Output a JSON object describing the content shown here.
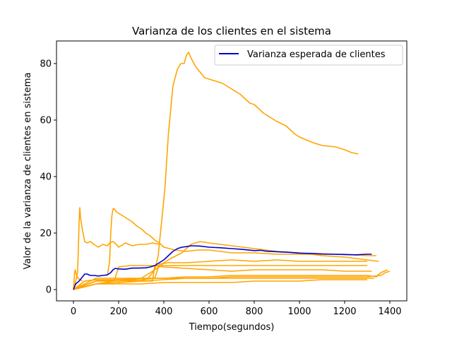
{
  "chart_data": {
    "type": "line",
    "title": "Varianza de los clientes en el sistema",
    "xlabel": "Tiempo(segundos)",
    "ylabel": "Valor de la varianza de clientes en sistema",
    "xlim": [
      -75,
      1475
    ],
    "ylim": [
      -4,
      88
    ],
    "xticks": [
      0,
      200,
      400,
      600,
      800,
      1000,
      1200,
      1400
    ],
    "yticks": [
      0,
      20,
      40,
      60,
      80
    ],
    "grid": false,
    "legend_position": "top-right",
    "legend": [
      "Varianza esperada de clientes"
    ],
    "colors": {
      "expected": "#0000cc",
      "samples": "#ffa500"
    },
    "series": [
      {
        "name": "Varianza esperada de clientes",
        "role": "expected",
        "x": [
          0,
          10,
          25,
          40,
          50,
          60,
          75,
          90,
          110,
          130,
          150,
          165,
          175,
          185,
          200,
          230,
          260,
          290,
          320,
          340,
          360,
          380,
          400,
          420,
          440,
          460,
          480,
          500,
          520,
          560,
          600,
          650,
          700,
          750,
          800,
          830,
          850,
          900,
          950,
          1000,
          1050,
          1100,
          1150,
          1200,
          1250,
          1300,
          1320
        ],
        "y": [
          0,
          2,
          3,
          4.5,
          5.5,
          5.5,
          5,
          5,
          4.8,
          5,
          5.2,
          6,
          7,
          7.5,
          7.3,
          7.2,
          7.6,
          7.6,
          7.7,
          8,
          8.5,
          9.5,
          10.5,
          12,
          13.5,
          14.5,
          15,
          15.2,
          15.5,
          15.4,
          15,
          14.8,
          14.5,
          14.2,
          13.8,
          13.9,
          13.6,
          13.4,
          13.2,
          12.9,
          12.8,
          12.6,
          12.5,
          12.4,
          12.3,
          12.5,
          12.5
        ]
      },
      {
        "x": [
          0,
          50,
          100,
          150,
          200,
          250,
          300,
          330,
          360,
          375,
          385,
          395,
          405,
          420,
          440,
          460,
          475,
          490,
          500,
          510,
          520,
          540,
          560,
          580,
          620,
          660,
          700,
          740,
          780,
          800,
          820,
          840,
          880,
          900,
          940,
          980,
          1000,
          1060,
          1100,
          1160,
          1200,
          1230,
          1260
        ],
        "y": [
          0,
          3,
          3.5,
          3.2,
          3.5,
          3,
          3,
          4,
          7,
          12,
          20,
          28,
          36,
          55,
          72,
          78,
          80,
          80,
          83,
          84,
          82,
          79,
          77,
          75,
          74,
          73,
          71,
          69,
          66,
          65.5,
          64,
          62.5,
          60.5,
          59.5,
          58,
          55,
          54,
          52,
          51,
          50.5,
          49.5,
          48.5,
          48
        ]
      },
      {
        "x": [
          0,
          10,
          18,
          22,
          25,
          28,
          32,
          40,
          50,
          60,
          75,
          90,
          110,
          130,
          150,
          160,
          175,
          190,
          200,
          230,
          260,
          290,
          320,
          350,
          380
        ],
        "y": [
          0,
          3,
          6,
          15,
          24,
          29,
          25,
          21,
          17,
          16.5,
          17,
          16,
          15,
          16,
          15.5,
          16.5,
          17,
          16,
          15,
          16.5,
          15.5,
          16,
          16,
          16.5,
          16
        ]
      },
      {
        "x": [
          150,
          160,
          165,
          170,
          175,
          180,
          190,
          200,
          220,
          240,
          260,
          280,
          300,
          320,
          340,
          360,
          380,
          400,
          450,
          500,
          550,
          600,
          650,
          700,
          800,
          900,
          1000,
          1100,
          1200,
          1300,
          1340
        ],
        "y": [
          5,
          10,
          20,
          26,
          28.5,
          28.7,
          27.5,
          27,
          26,
          25,
          24,
          22.5,
          21.5,
          20,
          19,
          17.5,
          16.5,
          15,
          14,
          13.5,
          14,
          14,
          13.5,
          13,
          13,
          12.5,
          12.5,
          12.5,
          12.5,
          12,
          12
        ]
      },
      {
        "x": [
          0,
          50,
          100,
          150,
          200,
          250,
          300,
          320,
          340,
          360,
          380,
          400,
          430,
          480,
          520,
          560,
          600,
          700,
          800,
          900,
          1000,
          1100,
          1200,
          1300,
          1350
        ],
        "y": [
          0,
          3,
          3.5,
          3.5,
          3.5,
          3.5,
          4,
          5,
          6,
          7,
          8,
          9.5,
          11,
          13,
          16,
          17,
          16.5,
          15.5,
          14.5,
          13.5,
          13,
          12,
          11.5,
          10.5,
          10
        ]
      },
      {
        "x": [
          0,
          100,
          200,
          300,
          360,
          380,
          420,
          500,
          600,
          700,
          800,
          900,
          1000,
          1100,
          1200,
          1300
        ],
        "y": [
          0,
          3,
          3,
          3.5,
          4,
          9,
          9.5,
          9.5,
          10,
          10.5,
          10,
          10.5,
          10,
          10,
          10,
          10
        ]
      },
      {
        "x": [
          0,
          100,
          180,
          200,
          250,
          300,
          350,
          400,
          500,
          600,
          700,
          800,
          900,
          1000,
          1100,
          1200,
          1300,
          1320
        ],
        "y": [
          0,
          2,
          3,
          8,
          8.5,
          8.5,
          8.5,
          8,
          7.5,
          7,
          6.5,
          7,
          7,
          7,
          7,
          6.5,
          6.5,
          6.5
        ]
      },
      {
        "x": [
          0,
          100,
          200,
          300,
          350,
          360,
          400,
          500,
          600,
          700,
          800,
          900,
          1000,
          1100,
          1200,
          1300
        ],
        "y": [
          0,
          2,
          2.5,
          3,
          3,
          8.5,
          8.5,
          8.5,
          8.5,
          8.5,
          8.5,
          8.5,
          8.5,
          8.5,
          8.5,
          8.5
        ]
      },
      {
        "x": [
          0,
          100,
          200,
          300,
          400,
          500,
          600,
          700,
          800,
          900,
          1000,
          1100,
          1200,
          1300,
          1360,
          1380,
          1400
        ],
        "y": [
          0,
          2,
          2.5,
          3,
          3.5,
          4,
          4,
          4.5,
          4.5,
          4.5,
          4.5,
          4.5,
          4.5,
          4.5,
          5,
          6,
          6.5
        ]
      },
      {
        "x": [
          0,
          100,
          200,
          300,
          400,
          500,
          600,
          700,
          800,
          900,
          1000,
          1100,
          1200,
          1300,
          1340,
          1360,
          1390
        ],
        "y": [
          0,
          3,
          3.5,
          4,
          4,
          4.5,
          4.5,
          5,
          5,
          5,
          5,
          5,
          5,
          5,
          4.5,
          6,
          7
        ]
      },
      {
        "x": [
          0,
          100,
          200,
          300,
          400,
          500,
          600,
          700,
          800,
          900,
          1000,
          1100,
          1200,
          1300,
          1330
        ],
        "y": [
          0,
          4,
          4,
          4,
          4,
          4,
          4,
          4,
          4,
          4,
          4,
          4,
          4,
          4,
          4
        ]
      },
      {
        "x": [
          0,
          100,
          200,
          300,
          400,
          500,
          600,
          700,
          800,
          900,
          1000,
          1100,
          1200,
          1300
        ],
        "y": [
          0,
          2,
          2,
          2,
          2.5,
          2.5,
          2.5,
          2.5,
          3,
          3,
          3,
          3.5,
          3.5,
          3.5
        ]
      },
      {
        "x": [
          0,
          5,
          8,
          12,
          20,
          40
        ],
        "y": [
          0,
          6,
          7,
          5.5,
          4,
          3
        ]
      }
    ]
  }
}
